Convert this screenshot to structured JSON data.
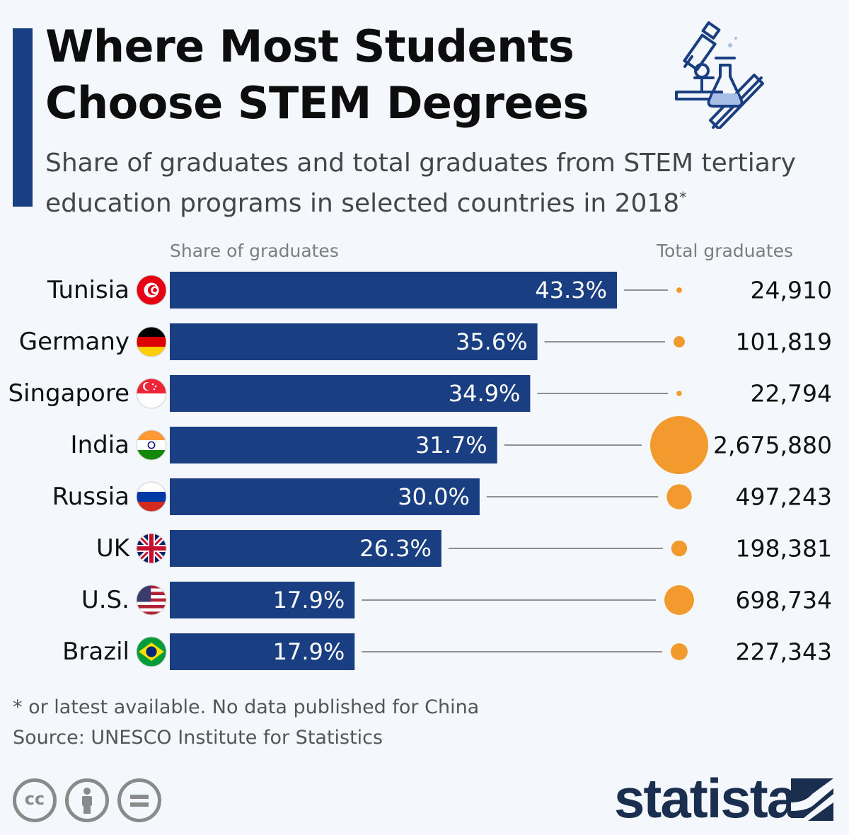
{
  "header": {
    "title": "Where Most Students Choose STEM Degrees",
    "subtitle": "Share of graduates and total graduates from STEM tertiary education programs in selected countries in 2018",
    "subtitle_mark": "*",
    "hero_icon": "microscope-flask-diploma-icon"
  },
  "colors": {
    "bar": "#1a3e82",
    "bubble": "#f39a2e",
    "accent": "#1a3e82",
    "connector": "#6f6f6f"
  },
  "chart_data": {
    "type": "bar",
    "orientation": "horizontal",
    "share_header": "Share of graduates",
    "total_header": "Total graduates",
    "categories": [
      "Tunisia",
      "Germany",
      "Singapore",
      "India",
      "Russia",
      "UK",
      "U.S.",
      "Brazil"
    ],
    "flags": [
      "tunisia-flag-icon",
      "germany-flag-icon",
      "singapore-flag-icon",
      "india-flag-icon",
      "russia-flag-icon",
      "uk-flag-icon",
      "us-flag-icon",
      "brazil-flag-icon"
    ],
    "series": [
      {
        "values": [
          43.3,
          35.6,
          34.9,
          31.7,
          30.0,
          26.3,
          17.9,
          17.9
        ],
        "labels": [
          "43.3%",
          "35.6%",
          "34.9%",
          "31.7%",
          "30.0%",
          "26.3%",
          "17.9%",
          "17.9%"
        ]
      },
      {
        "values": [
          24910,
          101819,
          22794,
          2675880,
          497243,
          198381,
          698734,
          227343
        ],
        "labels": [
          "24,910",
          "101,819",
          "22,794",
          "2,675,880",
          "497,243",
          "198,381",
          "698,734",
          "227,343"
        ]
      }
    ],
    "xlim": [
      0,
      43.3
    ]
  },
  "footer": {
    "note": "* or latest available. No data published for China",
    "source": "Source: UNESCO Institute for Statistics",
    "license_icons": [
      "cc-icon",
      "attribution-icon",
      "no-derivatives-icon"
    ],
    "cc_label": "cc",
    "brand": "statista"
  }
}
